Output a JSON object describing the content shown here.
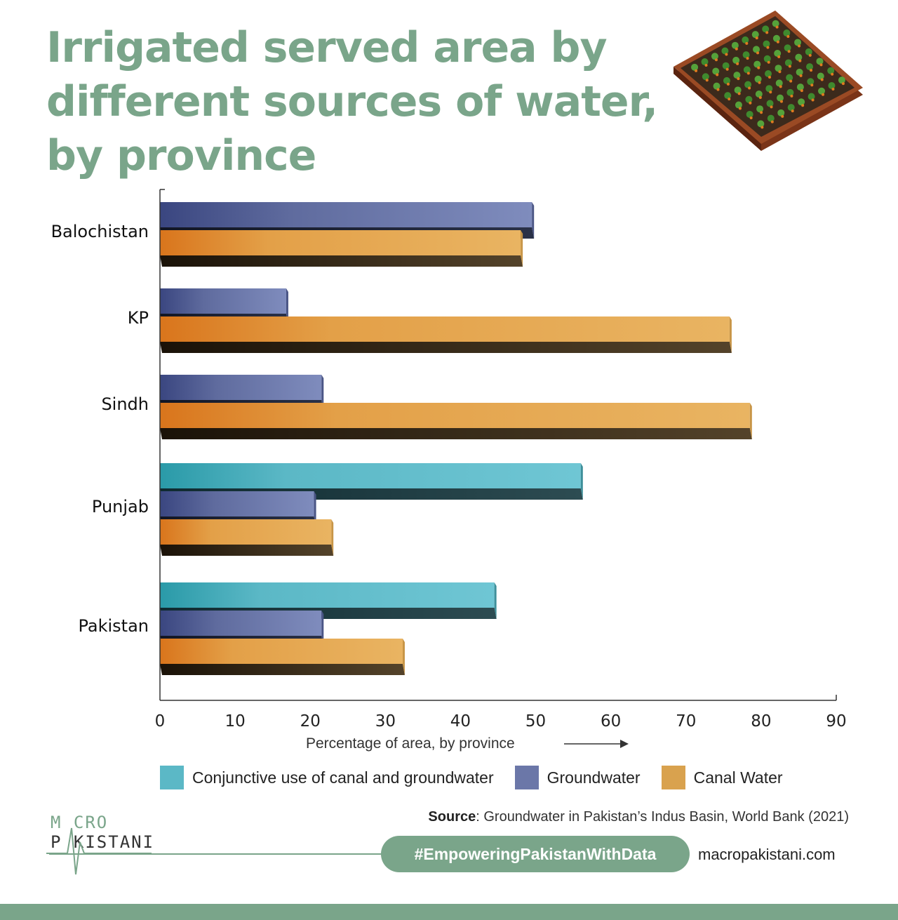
{
  "title_lines": [
    "Irrigated served area by",
    "different sources of water,",
    "by province"
  ],
  "chart_data": {
    "type": "bar",
    "orientation": "horizontal",
    "categories": [
      "Balochistan",
      "KP",
      "Sindh",
      "Punjab",
      "Pakistan"
    ],
    "series": [
      {
        "name": "Conjunctive use of canal and groundwater",
        "values": [
          null,
          null,
          null,
          56,
          44.5
        ]
      },
      {
        "name": "Groundwater",
        "values": [
          49.5,
          16.8,
          21.5,
          20.5,
          21.5
        ]
      },
      {
        "name": "Canal Water",
        "values": [
          48,
          75.8,
          78.5,
          22.8,
          32.3
        ]
      }
    ],
    "xlabel": "Percentage of area, by province",
    "xlim": [
      0,
      90
    ],
    "xticks": [
      0,
      10,
      20,
      30,
      40,
      50,
      60,
      70,
      80,
      90
    ],
    "grid": false,
    "legend_position": "bottom"
  },
  "colors": {
    "conjunctive": "#5bb8c6",
    "groundwater": "#6b77a8",
    "canal": "#e0a64a",
    "brand": "#7aa58a"
  },
  "legend": {
    "items": [
      {
        "label": "Conjunctive use of canal and groundwater",
        "color": "#5bb8c6"
      },
      {
        "label": "Groundwater",
        "color": "#6b77a8"
      },
      {
        "label": "Canal Water",
        "color": "#d9a24e"
      }
    ]
  },
  "source": {
    "label": "Source",
    "text": ": Groundwater in Pakistan’s Indus Basin, World Bank (2021)"
  },
  "logo": {
    "line1": "M CRO",
    "line2": "P KISTANI"
  },
  "footer": {
    "hashtag": "#EmpoweringPakistanWithData",
    "website": "macropakistani.com"
  },
  "icons": {
    "illustration": "farm-field-illustration-icon",
    "axis_arrow": "arrow-right-icon"
  }
}
